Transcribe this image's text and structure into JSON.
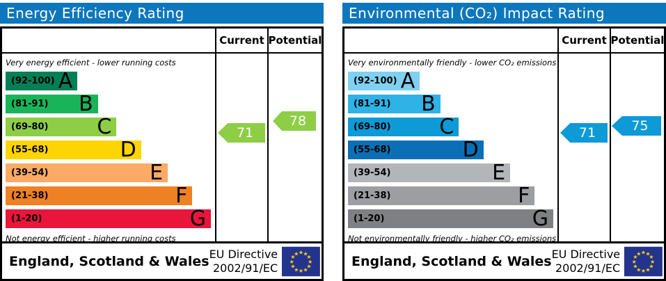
{
  "header_color": "#0c77bc",
  "chart_data": [
    {
      "type": "bar",
      "title": "Energy Efficiency Rating",
      "columns": [
        "Current",
        "Potential"
      ],
      "top_note": "Very energy efficient - lower running costs",
      "bottom_note": "Not energy efficient - higher running costs",
      "scale": [
        1,
        100
      ],
      "bands": [
        {
          "label": "A",
          "range_text": "(92-100)",
          "min": 92,
          "max": 100,
          "color": "#008054",
          "width_pct": 35
        },
        {
          "label": "B",
          "range_text": "(81-91)",
          "min": 81,
          "max": 91,
          "color": "#19b459",
          "width_pct": 45
        },
        {
          "label": "C",
          "range_text": "(69-80)",
          "min": 69,
          "max": 80,
          "color": "#8dce46",
          "width_pct": 54
        },
        {
          "label": "D",
          "range_text": "(55-68)",
          "min": 55,
          "max": 68,
          "color": "#ffd500",
          "width_pct": 66
        },
        {
          "label": "E",
          "range_text": "(39-54)",
          "min": 39,
          "max": 54,
          "color": "#fcaa65",
          "width_pct": 79
        },
        {
          "label": "F",
          "range_text": "(21-38)",
          "min": 21,
          "max": 38,
          "color": "#ef8023",
          "width_pct": 91
        },
        {
          "label": "G",
          "range_text": "(1-20)",
          "min": 1,
          "max": 20,
          "color": "#e9153b",
          "width_pct": 100
        }
      ],
      "current": {
        "value": 71,
        "color": "#8dce46"
      },
      "potential": {
        "value": 78,
        "color": "#8dce46"
      },
      "footer": {
        "region": "England, Scotland & Wales",
        "directive_line1": "EU Directive",
        "directive_line2": "2002/91/EC",
        "flag_colors": {
          "background": "#24338b",
          "stars": "#f7d21a"
        }
      }
    },
    {
      "type": "bar",
      "title": "Environmental (CO₂) Impact Rating",
      "columns": [
        "Current",
        "Potential"
      ],
      "top_note": "Very environmentally friendly - lower CO₂ emissions",
      "bottom_note": "Not environmentally friendly - higher CO₂ emissions",
      "scale": [
        1,
        100
      ],
      "bands": [
        {
          "label": "A",
          "range_text": "(92-100)",
          "min": 92,
          "max": 100,
          "color": "#7fd1f1",
          "width_pct": 35
        },
        {
          "label": "B",
          "range_text": "(81-91)",
          "min": 81,
          "max": 91,
          "color": "#2fb2e6",
          "width_pct": 45
        },
        {
          "label": "C",
          "range_text": "(69-80)",
          "min": 69,
          "max": 80,
          "color": "#0d9ad7",
          "width_pct": 54
        },
        {
          "label": "D",
          "range_text": "(55-68)",
          "min": 55,
          "max": 68,
          "color": "#0a6fb4",
          "width_pct": 66
        },
        {
          "label": "E",
          "range_text": "(39-54)",
          "min": 39,
          "max": 54,
          "color": "#b3b6b9",
          "width_pct": 79
        },
        {
          "label": "F",
          "range_text": "(21-38)",
          "min": 21,
          "max": 38,
          "color": "#9c9ea1",
          "width_pct": 91
        },
        {
          "label": "G",
          "range_text": "(1-20)",
          "min": 1,
          "max": 20,
          "color": "#7e8083",
          "width_pct": 100
        }
      ],
      "current": {
        "value": 71,
        "color": "#0d9ad7"
      },
      "potential": {
        "value": 75,
        "color": "#0d9ad7"
      },
      "footer": {
        "region": "England, Scotland & Wales",
        "directive_line1": "EU Directive",
        "directive_line2": "2002/91/EC",
        "flag_colors": {
          "background": "#24338b",
          "stars": "#f7d21a"
        }
      }
    }
  ]
}
